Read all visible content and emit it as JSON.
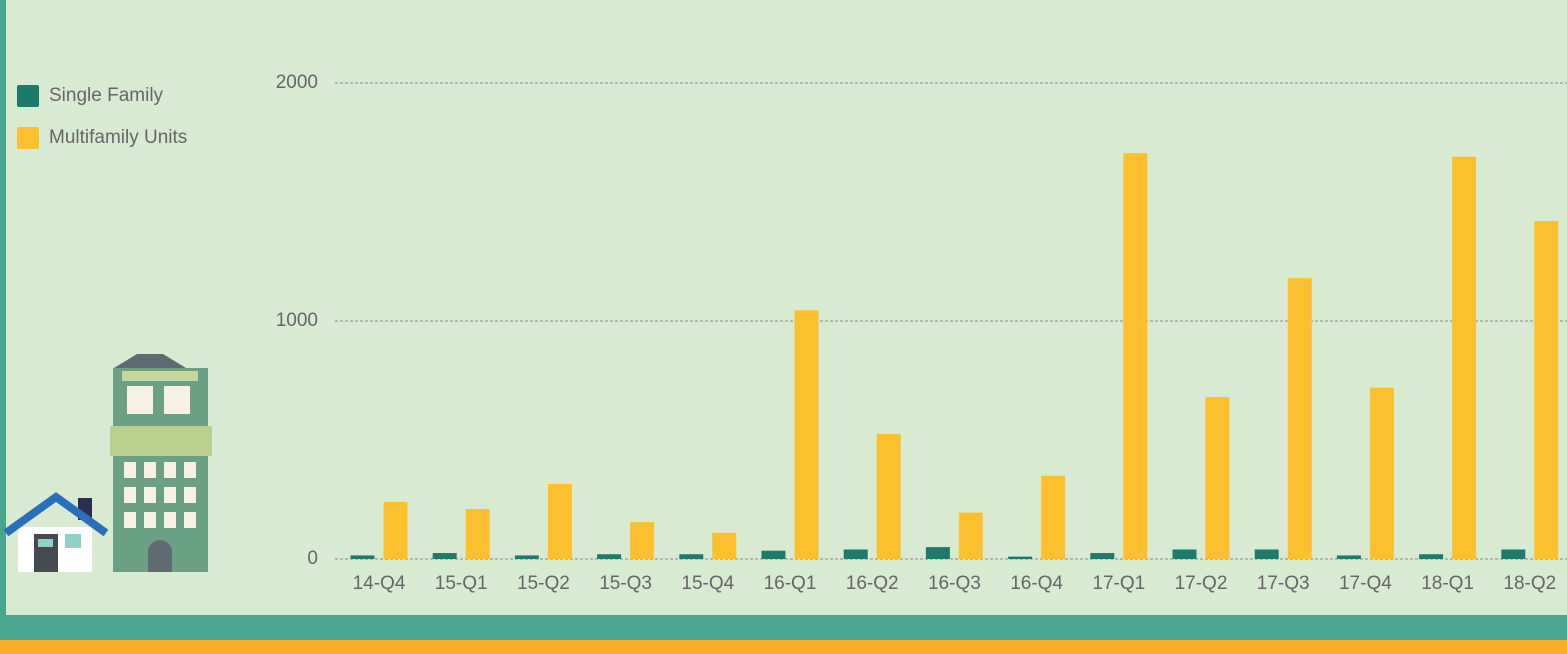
{
  "chart_data": {
    "type": "bar",
    "categories": [
      "14-Q4",
      "15-Q1",
      "15-Q2",
      "15-Q3",
      "15-Q4",
      "16-Q1",
      "16-Q2",
      "16-Q3",
      "16-Q4",
      "17-Q1",
      "17-Q2",
      "17-Q3",
      "17-Q4",
      "18-Q1",
      "18-Q2"
    ],
    "series": [
      {
        "name": "Single Family",
        "color": "#1e7a6a",
        "values": [
          15,
          25,
          15,
          20,
          20,
          35,
          40,
          50,
          10,
          25,
          40,
          40,
          15,
          20,
          40
        ]
      },
      {
        "name": "Multifamily Units",
        "color": "#fcc02e",
        "values": [
          240,
          210,
          315,
          155,
          110,
          1045,
          525,
          195,
          350,
          1705,
          680,
          1180,
          720,
          1690,
          1420
        ]
      }
    ],
    "ylim": [
      0,
      2000
    ],
    "yticks": [
      0,
      1000,
      2000
    ],
    "grid": true,
    "legend": "top-left"
  }
}
